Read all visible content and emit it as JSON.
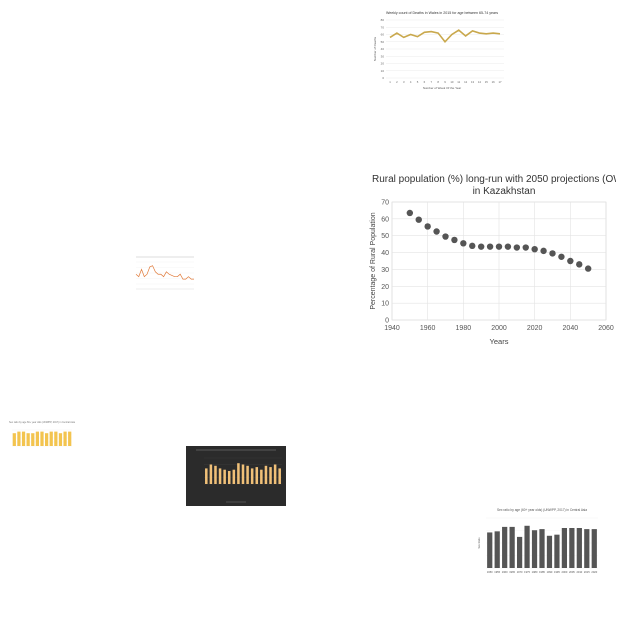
{
  "chart_data": [
    {
      "id": "weekly",
      "type": "line",
      "title": "Weekly count of Deaths in Wales in 2015 for age between 65-74 years",
      "xlabel": "Number of Week Of the Year",
      "ylabel": "Number of Deaths",
      "x": [
        1,
        2,
        3,
        4,
        5,
        6,
        7,
        8,
        9,
        10,
        11,
        12,
        13,
        14,
        15,
        16,
        17
      ],
      "ylim": [
        0,
        80
      ],
      "yticks": [
        0,
        10,
        20,
        30,
        40,
        50,
        60,
        70,
        80
      ],
      "series": [
        {
          "values": [
            56,
            62,
            56,
            60,
            57,
            63,
            64,
            62,
            50,
            60,
            66,
            58,
            65,
            62,
            61,
            62,
            61
          ]
        }
      ],
      "color": "#c9a84c"
    },
    {
      "id": "rural",
      "type": "scatter",
      "title": "Rural population (%) long-run with 2050 projections (OWID) in Kazakhstan",
      "xlabel": "Years",
      "ylabel": "Percentage of Rural Population",
      "xlim": [
        1940,
        2060
      ],
      "xticks": [
        1940,
        1960,
        1980,
        2000,
        2020,
        2040,
        2060
      ],
      "ylim": [
        0,
        70
      ],
      "yticks": [
        0,
        10,
        20,
        30,
        40,
        50,
        60,
        70
      ],
      "x": [
        1950,
        1955,
        1960,
        1965,
        1970,
        1975,
        1980,
        1985,
        1990,
        1995,
        2000,
        2005,
        2010,
        2015,
        2020,
        2025,
        2030,
        2035,
        2040,
        2045,
        2050
      ],
      "series": [
        {
          "values": [
            63.5,
            59.5,
            55.5,
            52.5,
            49.5,
            47.5,
            45.5,
            44,
            43.5,
            43.5,
            43.5,
            43.5,
            43,
            43,
            42,
            41,
            39.5,
            37.5,
            35,
            33,
            30.5
          ]
        }
      ],
      "color": "#555555"
    },
    {
      "id": "small-line",
      "type": "line",
      "x": [
        1,
        2,
        3,
        4,
        5,
        6,
        7,
        8,
        9,
        10,
        11,
        12,
        13,
        14,
        15,
        16,
        17,
        18,
        19,
        20,
        21,
        22
      ],
      "series": [
        {
          "values": [
            4,
            3,
            6,
            3,
            4,
            7,
            7.5,
            5,
            4,
            4,
            3,
            5,
            4,
            3.5,
            3,
            3,
            4,
            2,
            2,
            3,
            2,
            2
          ]
        }
      ],
      "ylim": [
        0,
        9
      ],
      "color": "#e07a3a"
    },
    {
      "id": "sex-yellow",
      "type": "bar",
      "title": "Sex ratio by age 60+ year olds (UNWPP, 2017) in Central Asia",
      "categories": [
        "1",
        "2",
        "3",
        "4",
        "5",
        "6",
        "7",
        "8",
        "9",
        "10",
        "11",
        "12",
        "13"
      ],
      "values": [
        8,
        9,
        9,
        8,
        8,
        9,
        9,
        8,
        9,
        9,
        8,
        9,
        9
      ],
      "ylim": [
        0,
        10
      ],
      "color": "#f3c44f"
    },
    {
      "id": "dark",
      "type": "bar",
      "categories": [
        "1",
        "2",
        "3",
        "4",
        "5",
        "6",
        "7",
        "8",
        "9",
        "10",
        "11",
        "12",
        "13",
        "14",
        "15",
        "16",
        "17"
      ],
      "values": [
        12,
        15,
        14,
        12,
        11,
        10,
        11,
        16,
        15,
        14,
        12,
        13,
        11,
        14,
        13,
        15,
        12
      ],
      "ylim": [
        0,
        20
      ],
      "color": "#f0c078"
    },
    {
      "id": "sex-grey",
      "type": "bar",
      "title": "Sex ratio by age (60+ year olds) (UNWPP, 2017) in Central Asia",
      "ylabel": "Sex Ratio",
      "categories": [
        "1950",
        "1955",
        "1960",
        "1965",
        "1970",
        "1975",
        "1980",
        "1985",
        "1990",
        "1995",
        "2000",
        "2005",
        "2010",
        "2015",
        "2020"
      ],
      "values": [
        32,
        33,
        37,
        37,
        28,
        38,
        34,
        35,
        29,
        30,
        36,
        36,
        36,
        35,
        35
      ],
      "ylim": [
        0,
        45
      ],
      "color": "#555555"
    }
  ]
}
